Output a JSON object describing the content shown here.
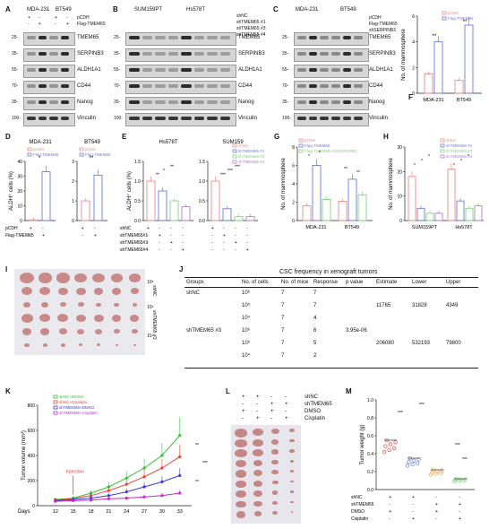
{
  "panels": {
    "A": {
      "label": "A",
      "cells": [
        "MDA-231",
        "BT549"
      ],
      "rows": [
        "pCDH",
        "Flag-TMEM65"
      ],
      "signs": [
        "+",
        "-",
        "+",
        "-",
        "-",
        "+",
        "-",
        "+"
      ],
      "markers": [
        "TMEM65",
        "SERPINB3",
        "ALDH1A1",
        "CD44",
        "Nanog",
        "Vinculin"
      ],
      "mw": [
        "25-",
        "35-",
        "55-",
        "70-",
        "35-",
        "100-"
      ]
    },
    "B": {
      "label": "B",
      "cells": [
        "SUM159PT",
        "Hs578T"
      ],
      "rows": [
        "shNC",
        "shTMEM65 #1",
        "shTMEM65 #3",
        "shTMEM65 #4"
      ],
      "markers": [
        "TMEM65",
        "SERPINB3",
        "ALDH1A1",
        "CD44",
        "Nanog",
        "Vinculin"
      ],
      "mw": [
        "25-",
        "35-",
        "55-",
        "70-",
        "35-",
        "100-"
      ]
    },
    "C": {
      "label": "C",
      "cells": [
        "MDA-231",
        "BT549"
      ],
      "rows": [
        "pCDH",
        "Flag-TMEM65",
        "shSERPINB3"
      ],
      "markers": [
        "TMEM65",
        "SERPINB3",
        "ALDH1A1",
        "CD44",
        "Nanog",
        "Vinculin"
      ],
      "mw": [
        "25-",
        "35-",
        "55-",
        "70-",
        "35-",
        "100-"
      ]
    },
    "D": {
      "label": "D",
      "cells": [
        "MDA-231",
        "BT549"
      ],
      "ylabel": "ALDH⁺ cells (%)",
      "xrows": [
        "pCDH",
        "Flag-TMEM65"
      ],
      "legend": [
        "pCDH",
        "Flag-TMEM65"
      ],
      "sig": [
        "*",
        "**"
      ]
    },
    "E": {
      "label": "E",
      "cells": [
        "Hs578T",
        "SUM159"
      ],
      "ylabel": "ALDH⁺ cells (%)",
      "xrows": [
        "shNC",
        "shTMEM65#1",
        "shTMEM65#3",
        "shTMEM65#4"
      ],
      "legend": [
        "shNC",
        "shTMEM65 #1",
        "shTMEM65 #3",
        "shTMEM65 #4"
      ],
      "sig": [
        "**",
        "*",
        "**",
        "***",
        "***",
        "***"
      ]
    },
    "F": {
      "label": "F",
      "ylabel": "No. of mammosphere",
      "cells": [
        "MDA-231",
        "BT549"
      ],
      "legend": [
        "pCDH",
        "Flag-TMEM65"
      ],
      "sig": [
        "**",
        "**"
      ]
    },
    "G": {
      "label": "G",
      "ylabel": "No. of mammosphere",
      "cells": [
        "MDA-231",
        "BT549"
      ],
      "legend": [
        "pCDH",
        "Flag-TMEM65",
        "Flag-TMEM65+shSERPINB3"
      ],
      "sig": [
        "*",
        "*",
        "**",
        "**"
      ]
    },
    "H": {
      "label": "H",
      "ylabel": "No. of mammosphere",
      "cells": [
        "SUM159PT",
        "Hs578T"
      ],
      "legend": [
        "shNC",
        "shTMEM65 #1",
        "shTMEM65 #3",
        "shTMEM65 #4"
      ],
      "sig": [
        "*",
        "*",
        "*",
        "*",
        "*",
        "*"
      ]
    },
    "I": {
      "label": "I",
      "rows": [
        "shNC",
        "shTMEM65 #3"
      ],
      "dilutions": [
        "10⁶",
        "10⁵",
        "10⁴"
      ]
    },
    "J": {
      "label": "J",
      "title": "CSC frequency in xenograft tumors",
      "headers": [
        "Groups",
        "No. of cells",
        "No. of mice",
        "Response",
        "p value",
        "Estimate",
        "Lower",
        "Upper"
      ],
      "rows": [
        [
          "shNC",
          "10⁶",
          "7",
          "7",
          "",
          "",
          "",
          ""
        ],
        [
          "",
          "10⁵",
          "7",
          "7",
          "",
          "11765",
          "31828",
          "4349"
        ],
        [
          "",
          "10⁴",
          "7",
          "4",
          "",
          "",
          "",
          ""
        ],
        [
          "shTMEM65 #3",
          "10⁶",
          "7",
          "6",
          "3.95e-06",
          "",
          "",
          ""
        ],
        [
          "",
          "10⁵",
          "7",
          "5",
          "",
          "206080",
          "532193",
          "79800"
        ],
        [
          "",
          "10⁴",
          "7",
          "2",
          "",
          "",
          "",
          ""
        ]
      ]
    },
    "K": {
      "label": "K",
      "ylabel": "Tumor volume (mm³)",
      "xlabel": "Days",
      "annotation": "Injection",
      "sig": [
        "**",
        "**",
        "***"
      ],
      "legend": [
        "shNC+DMSO",
        "shNC+Cisplatin",
        "shTMEM65+DMSO",
        "shTMEM65+Cisplatin"
      ]
    },
    "L": {
      "label": "L",
      "rows": [
        "shNC",
        "shTMEM65",
        "DMSO",
        "Cisplatin"
      ],
      "signs": [
        [
          "+",
          "+",
          "-",
          "-"
        ],
        [
          "-",
          "-",
          "+",
          "+"
        ],
        [
          "+",
          "-",
          "+",
          "-"
        ],
        [
          "-",
          "+",
          "-",
          "+"
        ]
      ]
    },
    "M": {
      "label": "M",
      "ylabel": "Tumor weight (g)",
      "rows": [
        "shNC",
        "shTMEM65",
        "DMSO",
        "Cisplatin"
      ],
      "signs": [
        [
          "+",
          "+",
          "-",
          "-"
        ],
        [
          "-",
          "-",
          "+",
          "+"
        ],
        [
          "+",
          "-",
          "+",
          "-"
        ],
        [
          "-",
          "+",
          "-",
          "+"
        ]
      ],
      "sig": [
        "***",
        "***",
        "***",
        "***"
      ]
    }
  },
  "colors": {
    "pink": "#f08a8a",
    "blue": "#6a7be0",
    "green": "#7fd67f",
    "purple": "#b27de0",
    "red": "#e8433a",
    "lime": "#34c234",
    "darkblue": "#3c3cdc",
    "magenta": "#c828c8",
    "orange": "#f4a24a"
  },
  "chart_data": [
    {
      "type": "bar",
      "panel": "D",
      "subtitle": "MDA-231",
      "categories": [
        "pCDH",
        "Flag-TMEM65"
      ],
      "series": [
        {
          "name": "pCDH",
          "values": [
            0.5,
            33
          ]
        }
      ],
      "ylim": [
        0,
        40
      ],
      "yticks": [
        "0",
        "10",
        "20",
        "30",
        "40"
      ]
    },
    {
      "type": "bar",
      "panel": "D",
      "subtitle": "BT549",
      "categories": [
        "pCDH",
        "Flag-TMEM65"
      ],
      "series": [
        {
          "name": "Flag-TMEM65",
          "values": [
            1.0,
            2.3
          ]
        }
      ],
      "ylim": [
        0,
        3
      ],
      "yticks": [
        "0",
        "1",
        "2",
        "3"
      ]
    },
    {
      "type": "bar",
      "panel": "E",
      "subtitle": "Hs578T",
      "categories": [
        "shNC",
        "shTMEM65 #1",
        "shTMEM65 #3",
        "shTMEM65 #4"
      ],
      "values": [
        1.0,
        0.75,
        0.5,
        0.35
      ],
      "ylim": [
        0,
        1.5
      ],
      "yticks": [
        "0.0",
        "0.5",
        "1.0",
        "1.5"
      ]
    },
    {
      "type": "bar",
      "panel": "E",
      "subtitle": "SUM159",
      "categories": [
        "shNC",
        "shTMEM65 #1",
        "shTMEM65 #3",
        "shTMEM65 #4"
      ],
      "values": [
        1.0,
        0.3,
        0.1,
        0.1
      ],
      "ylim": [
        0,
        1.5
      ],
      "yticks": [
        "0.0",
        "0.5",
        "1.0",
        "1.5"
      ]
    },
    {
      "type": "bar",
      "panel": "F",
      "categories": [
        "MDA-231",
        "BT549"
      ],
      "series": [
        {
          "name": "pCDH",
          "values": [
            1.5,
            1.0
          ]
        },
        {
          "name": "Flag-TMEM65",
          "values": [
            4.0,
            5.3
          ]
        }
      ],
      "ylim": [
        0,
        6
      ],
      "yticks": [
        "0",
        "2",
        "4",
        "6"
      ]
    },
    {
      "type": "bar",
      "panel": "G",
      "categories": [
        "MDA-231",
        "BT549"
      ],
      "series": [
        {
          "name": "pCDH",
          "values": [
            1.6,
            2.1
          ]
        },
        {
          "name": "Flag-TMEM65",
          "values": [
            6.0,
            4.5
          ]
        },
        {
          "name": "Flag-TMEM65+shSERPINB3",
          "values": [
            2.3,
            2.8
          ]
        }
      ],
      "ylim": [
        0,
        8
      ],
      "yticks": [
        "0",
        "2",
        "4",
        "6",
        "8"
      ]
    },
    {
      "type": "bar",
      "panel": "H",
      "categories": [
        "SUM159PT",
        "Hs578T"
      ],
      "series": [
        {
          "name": "shNC",
          "values": [
            18,
            21
          ]
        },
        {
          "name": "shTMEM65 #1",
          "values": [
            5,
            8
          ]
        },
        {
          "name": "shTMEM65 #3",
          "values": [
            3,
            5
          ]
        },
        {
          "name": "shTMEM65 #4",
          "values": [
            3,
            6
          ]
        }
      ],
      "ylim": [
        0,
        30
      ],
      "yticks": [
        "0",
        "10",
        "20",
        "30"
      ]
    },
    {
      "type": "line",
      "panel": "K",
      "x": [
        12,
        15,
        18,
        21,
        24,
        27,
        30,
        33
      ],
      "series": [
        {
          "name": "shNC+DMSO",
          "values": [
            50,
            60,
            100,
            150,
            220,
            300,
            400,
            560
          ]
        },
        {
          "name": "shNC+Cisplatin",
          "values": [
            45,
            55,
            80,
            120,
            170,
            230,
            300,
            390
          ]
        },
        {
          "name": "shTMEM65+DMSO",
          "values": [
            40,
            48,
            60,
            80,
            110,
            150,
            190,
            240
          ]
        },
        {
          "name": "shTMEM65+Cisplatin",
          "values": [
            35,
            40,
            45,
            55,
            60,
            70,
            80,
            100
          ]
        }
      ],
      "ylim": [
        0,
        800
      ],
      "yticks": [
        "0",
        "200",
        "400",
        "600",
        "800"
      ],
      "xticks": [
        "12",
        "15",
        "18",
        "21",
        "24",
        "27",
        "30",
        "33"
      ]
    },
    {
      "type": "scatter",
      "panel": "M",
      "categories": [
        "shNC+DMSO",
        "shNC+Cisplatin",
        "shTMEM65+DMSO",
        "shTMEM65+Cisplatin"
      ],
      "values": [
        0.55,
        0.35,
        0.22,
        0.12
      ],
      "ylim": [
        0,
        1.0
      ],
      "yticks": [
        "0.0",
        "0.2",
        "0.4",
        "0.6",
        "0.8",
        "1.0"
      ]
    }
  ]
}
